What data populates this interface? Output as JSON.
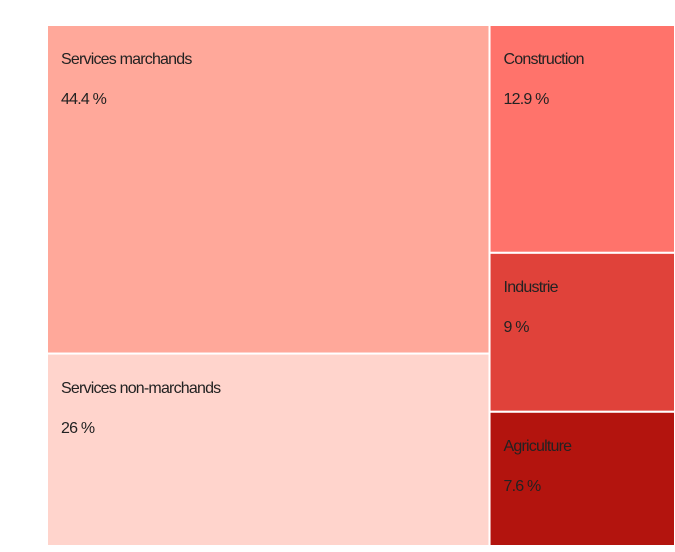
{
  "chart_data": {
    "type": "treemap",
    "categories": [
      "Services marchands",
      "Services non-marchands",
      "Construction",
      "Industrie",
      "Agriculture"
    ],
    "values": [
      44.4,
      26,
      12.9,
      9,
      7.6
    ],
    "value_labels": [
      "44.4 %",
      "26 %",
      "12.9 %",
      "9 %",
      "7.6 %"
    ],
    "colors": [
      "#ffa89a",
      "#ffd4cc",
      "#ff736b",
      "#e0423a",
      "#b3140e"
    ]
  }
}
